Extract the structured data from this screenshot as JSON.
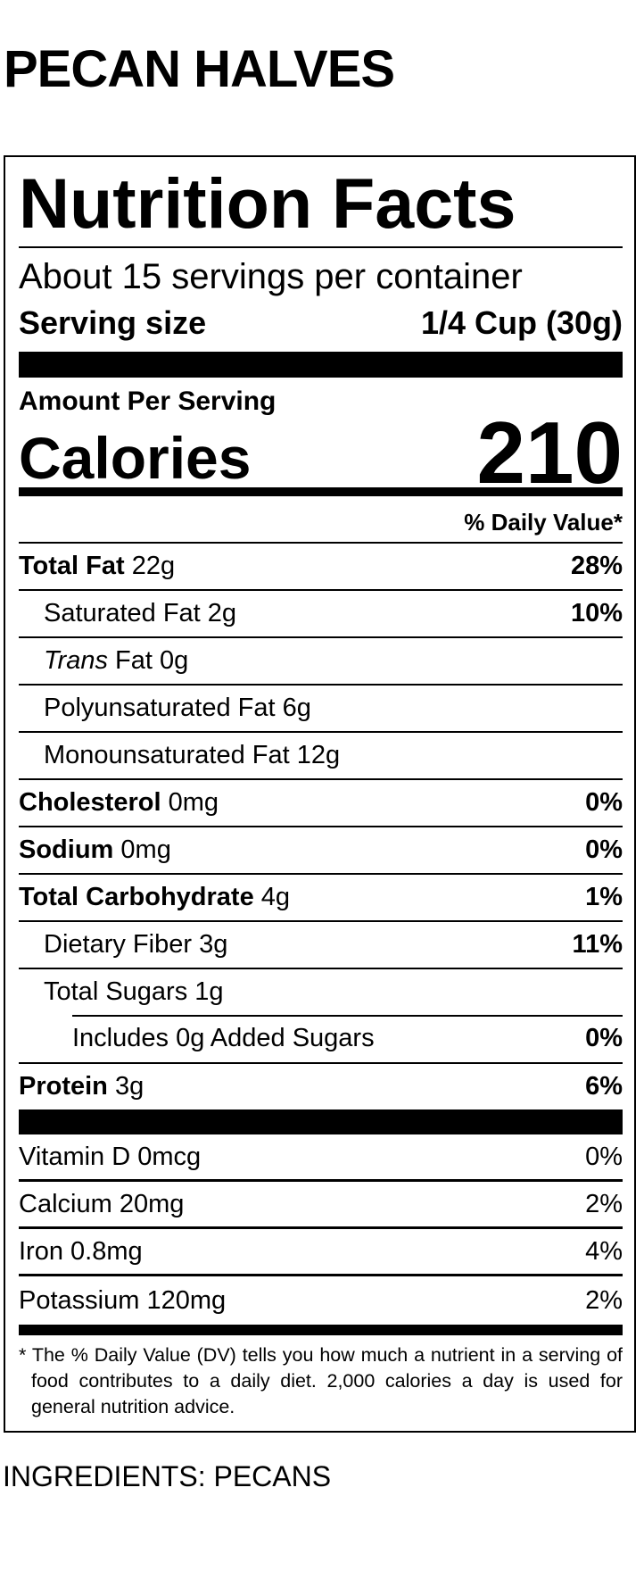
{
  "product_name": "PECAN HALVES",
  "label": {
    "title": "Nutrition Facts",
    "servings_per_container": "About 15 servings per container",
    "serving_size_label": "Serving size",
    "serving_size_value": "1/4 Cup (30g)",
    "amount_per_serving": "Amount Per Serving",
    "calories_label": "Calories",
    "calories_value": "210",
    "daily_value_header": "% Daily Value*",
    "nutrients": [
      {
        "name": "Total Fat",
        "amount": "22g",
        "dv": "28%",
        "bold": true,
        "indent": 0
      },
      {
        "name": "Saturated Fat",
        "amount": "2g",
        "dv": "10%",
        "bold": false,
        "indent": 1
      },
      {
        "name": "Trans",
        "name_suffix": "Fat",
        "amount": "0g",
        "dv": "",
        "bold": false,
        "italic": true,
        "indent": 1
      },
      {
        "name": "Polyunsaturated Fat",
        "amount": "6g",
        "dv": "",
        "bold": false,
        "indent": 1
      },
      {
        "name": "Monounsaturated Fat",
        "amount": "12g",
        "dv": "",
        "bold": false,
        "indent": 1
      },
      {
        "name": "Cholesterol",
        "amount": "0mg",
        "dv": "0%",
        "bold": true,
        "indent": 0
      },
      {
        "name": "Sodium",
        "amount": "0mg",
        "dv": "0%",
        "bold": true,
        "indent": 0
      },
      {
        "name": "Total Carbohydrate",
        "amount": "4g",
        "dv": "1%",
        "bold": true,
        "indent": 0
      },
      {
        "name": "Dietary Fiber",
        "amount": "3g",
        "dv": "11%",
        "bold": false,
        "indent": 1
      },
      {
        "name": "Total Sugars",
        "amount": "1g",
        "dv": "",
        "bold": false,
        "indent": 1
      },
      {
        "name": "Includes 0g Added Sugars",
        "amount": "",
        "dv": "0%",
        "bold": false,
        "indent": 2
      },
      {
        "name": "Protein",
        "amount": "3g",
        "dv": "6%",
        "bold": true,
        "indent": 0
      }
    ],
    "vitamins": [
      {
        "name": "Vitamin D",
        "amount": "0mcg",
        "dv": "0%"
      },
      {
        "name": "Calcium",
        "amount": "20mg",
        "dv": "2%"
      },
      {
        "name": "Iron",
        "amount": "0.8mg",
        "dv": "4%"
      },
      {
        "name": "Potassium",
        "amount": "120mg",
        "dv": "2%"
      }
    ],
    "footnote": "* The % Daily Value (DV) tells you how much a nutrient in a serving of food contributes to a daily diet. 2,000 calories a day is used for general nutrition advice."
  },
  "ingredients": "INGREDIENTS: PECANS"
}
